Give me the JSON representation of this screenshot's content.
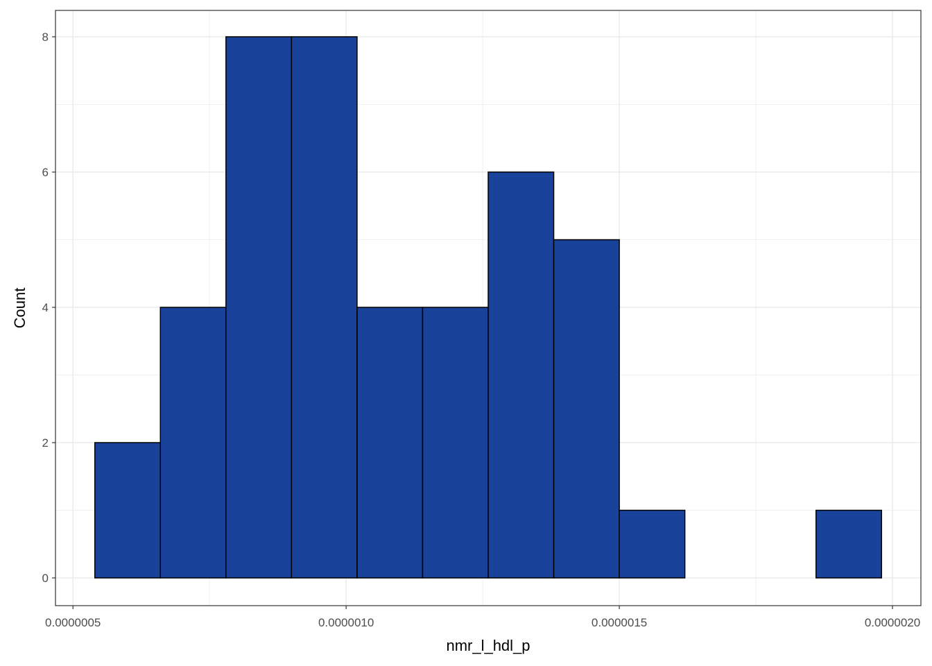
{
  "chart_data": {
    "type": "histogram",
    "x_label": "nmr_l_hdl_p",
    "y_label": "Count",
    "bins": [
      5.4e-07,
      6.6e-07,
      7.8e-07,
      9e-07,
      1.02e-06,
      1.14e-06,
      1.26e-06,
      1.38e-06,
      1.5e-06,
      1.62e-06,
      1.74e-06,
      1.86e-06,
      1.98e-06
    ],
    "values": [
      2,
      4,
      8,
      8,
      4,
      4,
      6,
      5,
      1,
      0,
      0,
      1
    ],
    "color": "#19439a",
    "xlim": [
      4.68e-07,
      2.052e-06
    ],
    "ylim": [
      -0.41,
      8.39
    ],
    "xticks": [
      {
        "value": 5e-07,
        "label": "0.0000005"
      },
      {
        "value": 1e-06,
        "label": "0.0000010"
      },
      {
        "value": 1.5e-06,
        "label": "0.0000015"
      },
      {
        "value": 2e-06,
        "label": "0.0000020"
      }
    ],
    "yticks": [
      0,
      2,
      4,
      6,
      8
    ],
    "grid": true
  }
}
